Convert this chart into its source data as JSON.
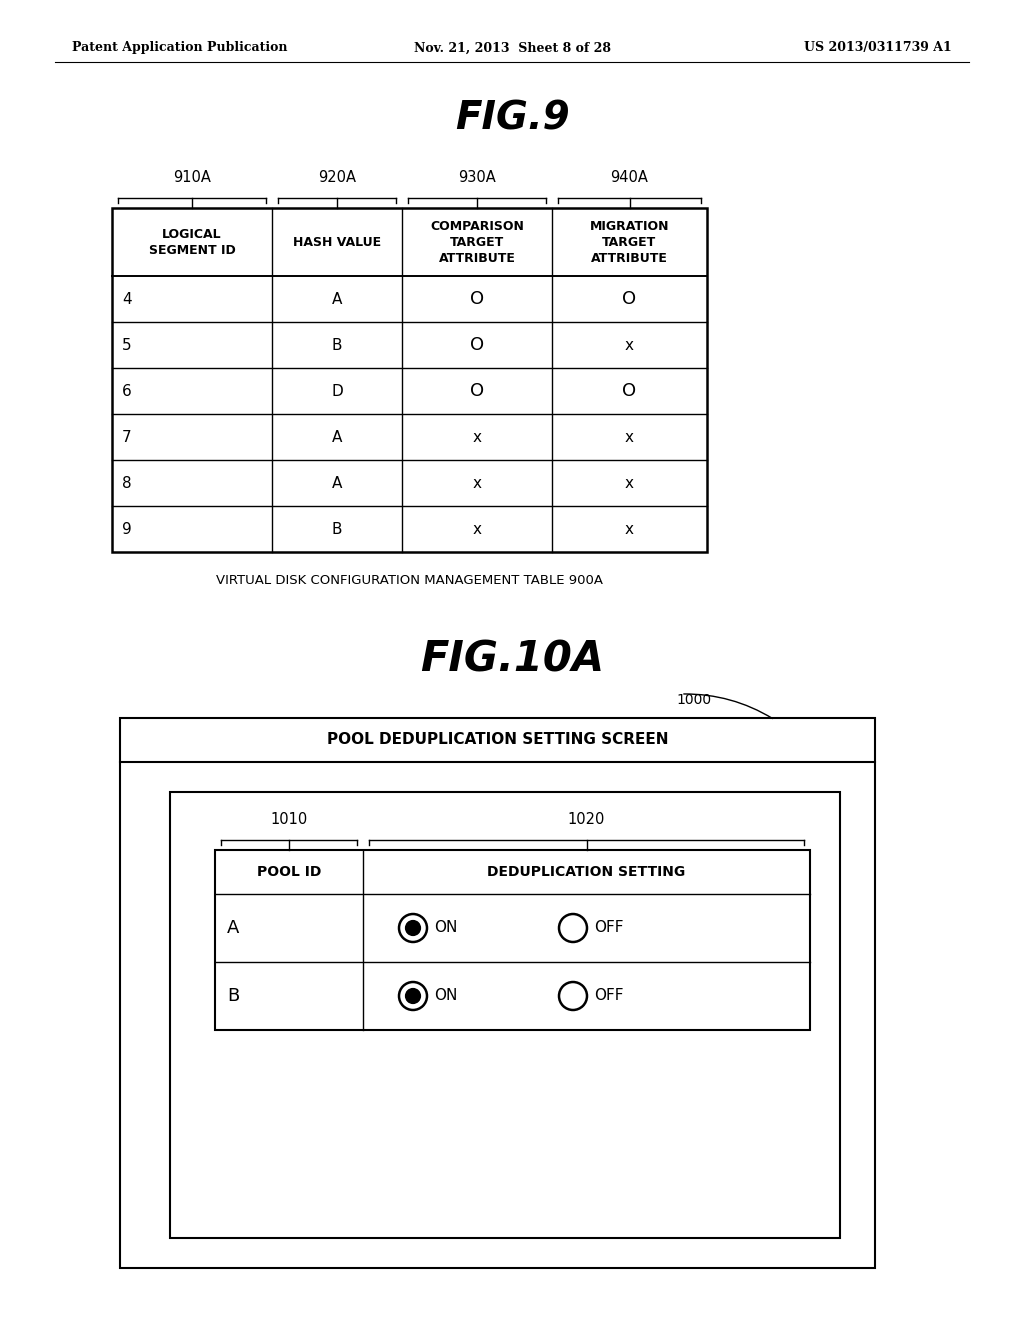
{
  "bg_color": "#ffffff",
  "header_left": "Patent Application Publication",
  "header_center": "Nov. 21, 2013  Sheet 8 of 28",
  "header_right": "US 2013/0311739 A1",
  "fig9_title": "FIG.9",
  "fig9_col_labels": [
    "910A",
    "920A",
    "930A",
    "940A"
  ],
  "fig9_header_row": [
    "LOGICAL\nSEGMENT ID",
    "HASH VALUE",
    "COMPARISON\nTARGET\nATTRIBUTE",
    "MIGRATION\nTARGET\nATTRIBUTE"
  ],
  "fig9_rows": [
    [
      "4",
      "A",
      "O",
      "O"
    ],
    [
      "5",
      "B",
      "O",
      "x"
    ],
    [
      "6",
      "D",
      "O",
      "O"
    ],
    [
      "7",
      "A",
      "x",
      "x"
    ],
    [
      "8",
      "A",
      "x",
      "x"
    ],
    [
      "9",
      "B",
      "x",
      "x"
    ]
  ],
  "fig9_caption": "VIRTUAL DISK CONFIGURATION MANAGEMENT TABLE 900A",
  "fig10a_title": "FIG.10A",
  "outer_label": "1000",
  "outer_title": "POOL DEDUPLICATION SETTING SCREEN",
  "inner_col_labels": [
    "1010",
    "1020"
  ],
  "inner_header": [
    "POOL ID",
    "DEDUPLICATION SETTING"
  ],
  "inner_rows": [
    {
      "pool_id": "A",
      "on_selected": true
    },
    {
      "pool_id": "B",
      "on_selected": true
    }
  ]
}
